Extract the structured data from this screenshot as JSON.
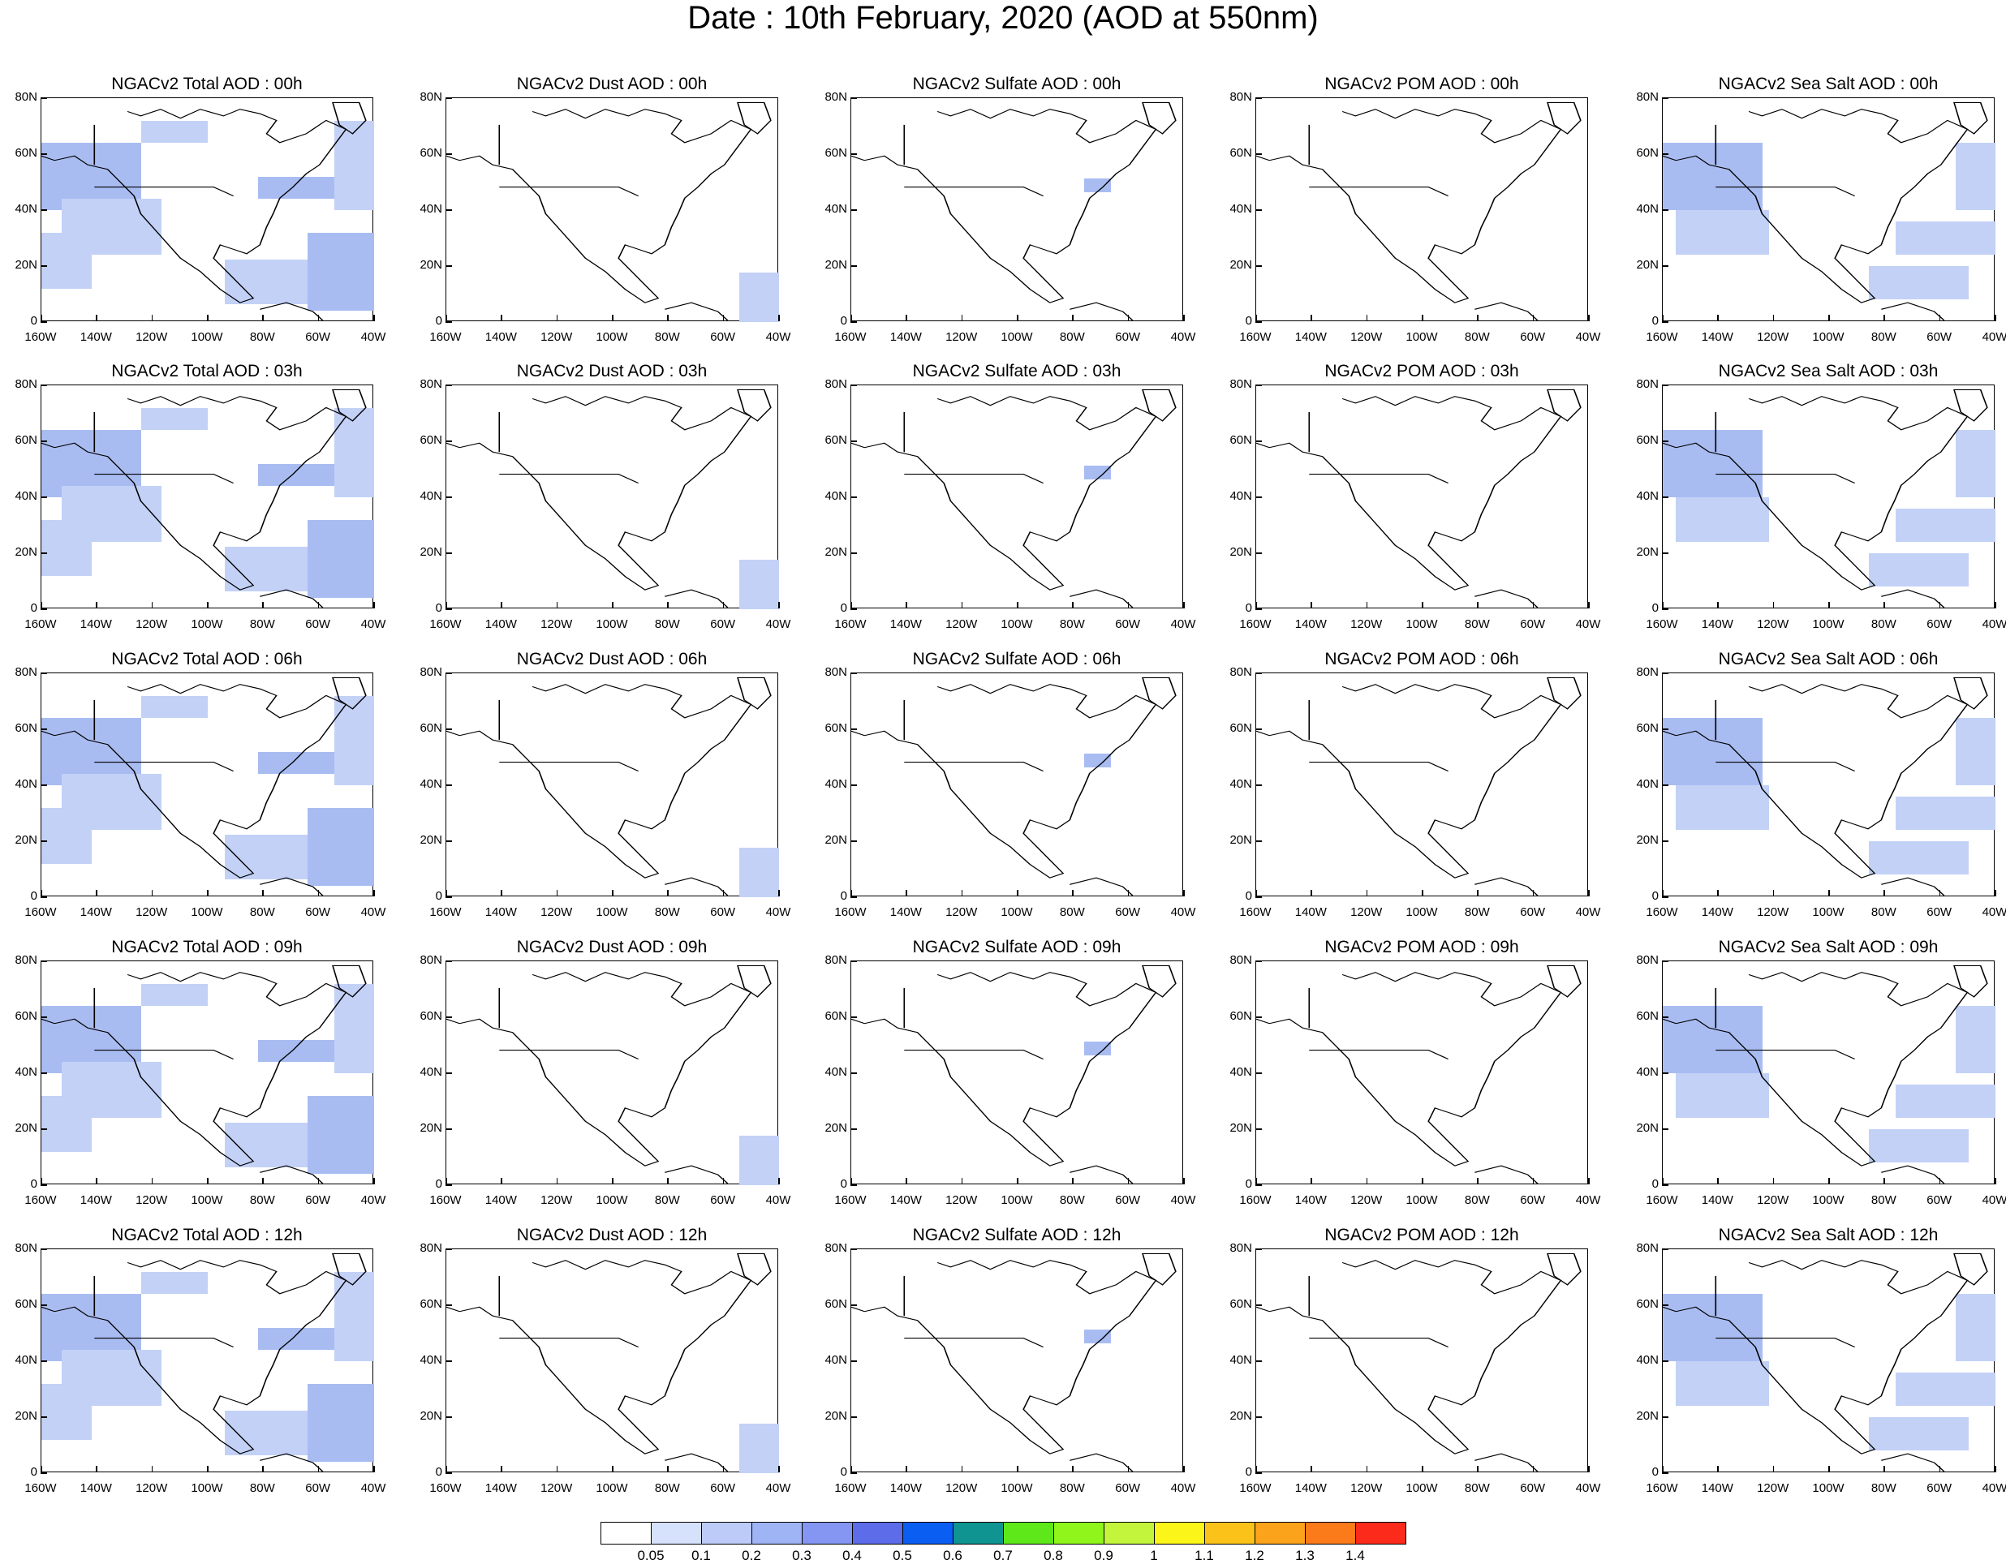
{
  "title": "Date : 10th February, 2020 (AOD at 550nm)",
  "panels": [
    [
      "NGACv2 Total AOD : 00h",
      "NGACv2 Dust AOD : 00h",
      "NGACv2 Sulfate AOD : 00h",
      "NGACv2 POM AOD : 00h",
      "NGACv2 Sea Salt AOD : 00h"
    ],
    [
      "NGACv2 Total AOD : 03h",
      "NGACv2 Dust AOD : 03h",
      "NGACv2 Sulfate AOD : 03h",
      "NGACv2 POM AOD : 03h",
      "NGACv2 Sea Salt AOD : 03h"
    ],
    [
      "NGACv2 Total AOD : 06h",
      "NGACv2 Dust AOD : 06h",
      "NGACv2 Sulfate AOD : 06h",
      "NGACv2 POM AOD : 06h",
      "NGACv2 Sea Salt AOD : 06h"
    ],
    [
      "NGACv2 Total AOD : 09h",
      "NGACv2 Dust AOD : 09h",
      "NGACv2 Sulfate AOD : 09h",
      "NGACv2 POM AOD : 09h",
      "NGACv2 Sea Salt  AOD : 09h"
    ],
    [
      "NGACv2 Total AOD  : 12h",
      "NGACv2 Dust AOD : 12h",
      "NGACv2 Sulfate AOD : 12h",
      "NGACv2 POM  AOD : 12h",
      "NGACv2 Sea Salt  AOD : 12h"
    ]
  ],
  "lat_labels": [
    "80N",
    "60N",
    "40N",
    "20N",
    "0"
  ],
  "lon_labels": [
    "160W",
    "140W",
    "120W",
    "100W",
    "80W",
    "60W",
    "40W"
  ],
  "colorbar": {
    "colors": [
      "#ffffff",
      "#d6e1fb",
      "#bccbf7",
      "#9fb4f4",
      "#8496f1",
      "#5d6ce8",
      "#0b5ef2",
      "#0f9491",
      "#5ee81a",
      "#8ff51a",
      "#c3f53c",
      "#fbf51a",
      "#fbc31a",
      "#fba31a",
      "#fb7a1a",
      "#fb2a1a"
    ],
    "labels": [
      "0.05",
      "0.1",
      "0.2",
      "0.3",
      "0.4",
      "0.5",
      "0.6",
      "0.7",
      "0.8",
      "0.9",
      "1",
      "1.1",
      "1.2",
      "1.3",
      "1.4"
    ]
  }
}
